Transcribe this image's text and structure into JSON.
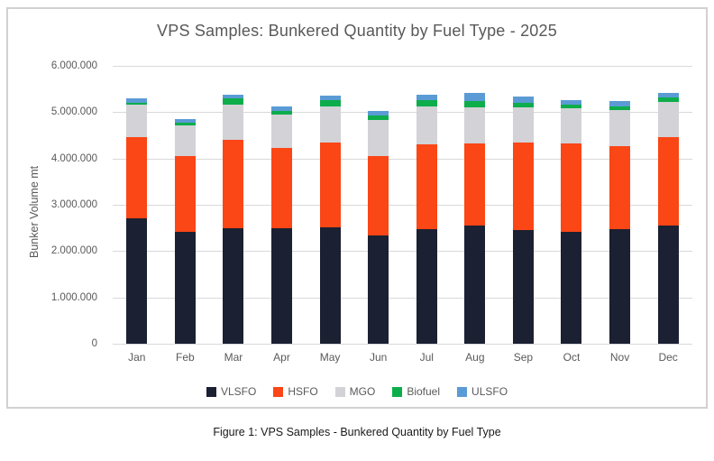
{
  "caption": "Figure 1: VPS Samples - Bunkered Quantity by Fuel Type",
  "chart_data": {
    "type": "bar",
    "stacked": true,
    "title": "VPS Samples: Bunkered Quantity by Fuel Type - 2025",
    "ylabel": "Bunker Volume mt",
    "xlabel": "",
    "ylim": [
      0,
      6000000
    ],
    "yticks_top_to_bottom": [
      "6.000.000",
      "5.000.000",
      "4.000.000",
      "3.000.000",
      "2.000.000",
      "1.000.000",
      "0"
    ],
    "grid": true,
    "legend_position": "bottom",
    "categories": [
      "Jan",
      "Feb",
      "Mar",
      "Apr",
      "May",
      "Jun",
      "Jul",
      "Aug",
      "Sep",
      "Oct",
      "Nov",
      "Dec"
    ],
    "series": [
      {
        "name": "VLSFO",
        "color": "#1b2032",
        "values": [
          2700000,
          2410000,
          2500000,
          2500000,
          2520000,
          2340000,
          2470000,
          2560000,
          2450000,
          2420000,
          2480000,
          2550000
        ]
      },
      {
        "name": "HSFO",
        "color": "#fb4616",
        "values": [
          1770000,
          1640000,
          1910000,
          1720000,
          1820000,
          1710000,
          1840000,
          1770000,
          1890000,
          1910000,
          1790000,
          1920000
        ]
      },
      {
        "name": "MGO",
        "color": "#d2d2d7",
        "values": [
          690000,
          670000,
          760000,
          730000,
          790000,
          790000,
          810000,
          780000,
          760000,
          750000,
          780000,
          760000
        ]
      },
      {
        "name": "Biofuel",
        "color": "#0dad4b",
        "values": [
          50000,
          50000,
          130000,
          80000,
          130000,
          90000,
          150000,
          140000,
          110000,
          80000,
          80000,
          90000
        ]
      },
      {
        "name": "ULSFO",
        "color": "#5b9bd5",
        "values": [
          90000,
          80000,
          80000,
          100000,
          90000,
          100000,
          110000,
          160000,
          130000,
          100000,
          120000,
          100000
        ]
      }
    ],
    "colors": {
      "gridline": "#d9d9d9",
      "axis_text": "#595959",
      "frame_border": "#d2d0d0",
      "caption_text": "#191919"
    }
  }
}
